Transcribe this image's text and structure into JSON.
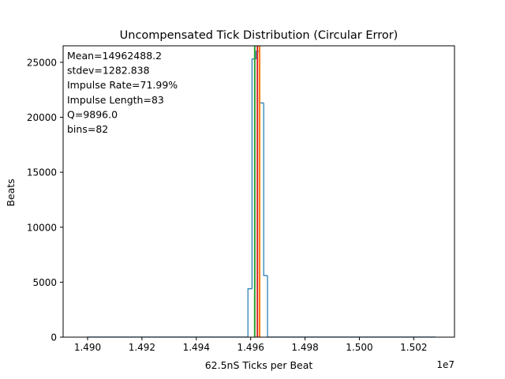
{
  "chart_data": {
    "type": "histogram",
    "title": "Uncompensated Tick Distribution (Circular Error)",
    "xlabel": "62.5nS Ticks per Beat",
    "ylabel": "Beats",
    "x_offset_label": "1e7",
    "x_scale": 10000000,
    "xlim": [
      14891000,
      15035000
    ],
    "ylim": [
      0,
      26500
    ],
    "x_ticks": [
      {
        "value": 14900000,
        "label": "1.490"
      },
      {
        "value": 14920000,
        "label": "1.492"
      },
      {
        "value": 14940000,
        "label": "1.494"
      },
      {
        "value": 14960000,
        "label": "1.496"
      },
      {
        "value": 14980000,
        "label": "1.498"
      },
      {
        "value": 15000000,
        "label": "1.500"
      },
      {
        "value": 15020000,
        "label": "1.502"
      }
    ],
    "y_ticks": [
      {
        "value": 0,
        "label": "0"
      },
      {
        "value": 5000,
        "label": "5000"
      },
      {
        "value": 10000,
        "label": "10000"
      },
      {
        "value": 15000,
        "label": "15000"
      },
      {
        "value": 20000,
        "label": "20000"
      },
      {
        "value": 25000,
        "label": "25000"
      }
    ],
    "bins": [
      {
        "x0": 14900000,
        "x1": 14959000,
        "count": 10
      },
      {
        "x0": 14959000,
        "x1": 14960500,
        "count": 4400
      },
      {
        "x0": 14960500,
        "x1": 14962000,
        "count": 25300
      },
      {
        "x0": 14962000,
        "x1": 14963400,
        "count": 26000
      },
      {
        "x0": 14963400,
        "x1": 14964800,
        "count": 21300
      },
      {
        "x0": 14964800,
        "x1": 14966200,
        "count": 5600
      },
      {
        "x0": 14966200,
        "x1": 15028000,
        "count": 10
      }
    ],
    "reference_lines": [
      {
        "x": 14961500,
        "color": "#2ca02c"
      },
      {
        "x": 14962488.2,
        "color": "#d62728"
      },
      {
        "x": 14963300,
        "color": "#ff7f0e"
      }
    ],
    "hist_color": "#1f77b4",
    "annotations": [
      "Mean=14962488.2",
      "stdev=1282.838",
      "Impulse Rate=71.99%",
      "Impulse Length=83",
      "Q=9896.0",
      "bins=82"
    ]
  }
}
